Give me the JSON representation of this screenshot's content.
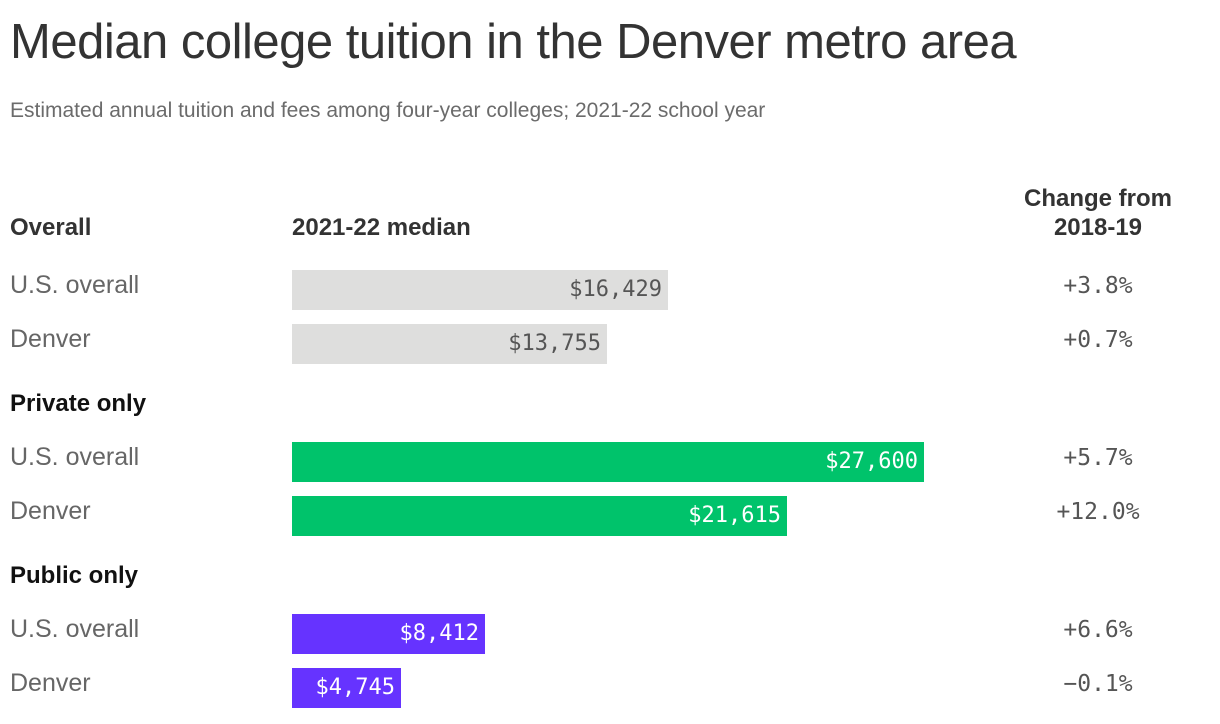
{
  "title": "Median college tuition in the Denver metro area",
  "subtitle": "Estimated annual tuition and fees among four-year colleges; 2021-22 school year",
  "headers": {
    "overall": "Overall",
    "median": "2021-22 median",
    "change": "Change from 2018-19"
  },
  "chart_data": {
    "type": "bar",
    "orientation": "horizontal",
    "title": "Median college tuition in the Denver metro area",
    "subtitle": "Estimated annual tuition and fees among four-year colleges; 2021-22 school year",
    "value_column": "2021-22 median",
    "change_column": "Change from 2018-19",
    "xlim": [
      0,
      27600
    ],
    "grid": false,
    "groups": [
      {
        "name": "Overall",
        "color": "#dededd",
        "label_color": "#555555",
        "rows": [
          {
            "label": "U.S. overall",
            "value": 16429,
            "value_label": "$16,429",
            "change": "+3.8%"
          },
          {
            "label": "Denver",
            "value": 13755,
            "value_label": "$13,755",
            "change": "+0.7%"
          }
        ]
      },
      {
        "name": "Private only",
        "color": "#00c36b",
        "label_color": "#ffffff",
        "rows": [
          {
            "label": "U.S. overall",
            "value": 27600,
            "value_label": "$27,600",
            "change": "+5.7%"
          },
          {
            "label": "Denver",
            "value": 21615,
            "value_label": "$21,615",
            "change": "+12.0%"
          }
        ]
      },
      {
        "name": "Public only",
        "color": "#6633ff",
        "label_color": "#ffffff",
        "rows": [
          {
            "label": "U.S. overall",
            "value": 8412,
            "value_label": "$8,412",
            "change": "+6.6%"
          },
          {
            "label": "Denver",
            "value": 4745,
            "value_label": "$4,745",
            "change": "−0.1%"
          }
        ]
      }
    ]
  }
}
